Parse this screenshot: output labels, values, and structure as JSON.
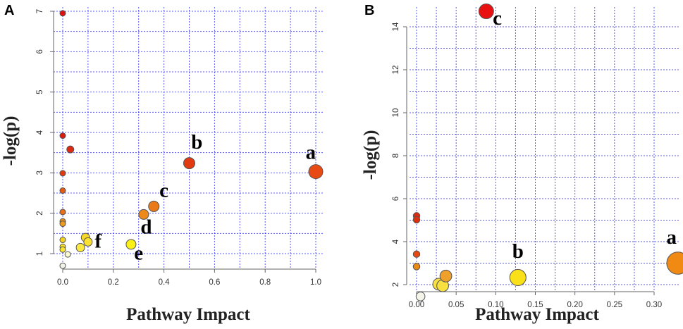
{
  "chart_data": [
    {
      "panel": "A",
      "type": "scatter",
      "xlabel": "Pathway Impact",
      "ylabel": "-log(p)",
      "xlim": [
        0,
        1.0
      ],
      "ylim": [
        0.6,
        7.0
      ],
      "xticks": [
        0.0,
        0.2,
        0.4,
        0.6,
        0.8,
        1.0
      ],
      "xtick_labels": [
        "0.0",
        "0.2",
        "0.4",
        "0.6",
        "0.8",
        "1.0"
      ],
      "yticks": [
        1,
        2,
        3,
        4,
        5,
        6,
        7
      ],
      "ytick_labels": [
        "1",
        "2",
        "3",
        "4",
        "5",
        "6",
        "7"
      ],
      "grid": true,
      "points": [
        {
          "x": 0.0,
          "y": 6.95,
          "size": 4,
          "color": "#dd1010"
        },
        {
          "x": 0.0,
          "y": 3.92,
          "size": 4,
          "color": "#dd1a10"
        },
        {
          "x": 0.03,
          "y": 3.58,
          "size": 5,
          "color": "#e02a10"
        },
        {
          "x": 0.0,
          "y": 2.99,
          "size": 4,
          "color": "#e23a10"
        },
        {
          "x": 0.0,
          "y": 2.56,
          "size": 4,
          "color": "#e55a14"
        },
        {
          "x": 0.0,
          "y": 2.03,
          "size": 4,
          "color": "#e87018"
        },
        {
          "x": 0.0,
          "y": 1.8,
          "size": 4,
          "color": "#ec8c1a"
        },
        {
          "x": 0.0,
          "y": 1.74,
          "size": 4,
          "color": "#ee9a1c"
        },
        {
          "x": 0.0,
          "y": 1.34,
          "size": 4,
          "color": "#f4d020"
        },
        {
          "x": 0.0,
          "y": 1.17,
          "size": 4,
          "color": "#f7df24"
        },
        {
          "x": 0.0,
          "y": 1.1,
          "size": 4,
          "color": "#f9e530"
        },
        {
          "x": 0.0,
          "y": 0.7,
          "size": 4,
          "color": "#f2f2e8"
        },
        {
          "x": 0.02,
          "y": 0.98,
          "size": 4,
          "color": "#fafad0"
        },
        {
          "x": 0.07,
          "y": 1.15,
          "size": 6,
          "color": "#fbe840"
        },
        {
          "x": 0.09,
          "y": 1.4,
          "size": 6,
          "color": "#f8d828"
        },
        {
          "x": 0.1,
          "y": 1.29,
          "size": 6,
          "color": "#fae030"
        },
        {
          "x": 0.27,
          "y": 1.23,
          "size": 7,
          "color": "#fbf018"
        },
        {
          "x": 0.32,
          "y": 1.97,
          "size": 7,
          "color": "#ee8a1a"
        },
        {
          "x": 0.36,
          "y": 2.17,
          "size": 7.5,
          "color": "#ea7a18"
        },
        {
          "x": 0.5,
          "y": 3.24,
          "size": 8,
          "color": "#e23a10"
        },
        {
          "x": 1.0,
          "y": 3.03,
          "size": 10,
          "color": "#e84a14"
        }
      ],
      "annotations": [
        {
          "text": "a",
          "x": 0.98,
          "y": 3.35
        },
        {
          "text": "b",
          "x": 0.53,
          "y": 3.6
        },
        {
          "text": "c",
          "x": 0.4,
          "y": 2.4
        },
        {
          "text": "d",
          "x": 0.33,
          "y": 1.5
        },
        {
          "text": "e",
          "x": 0.3,
          "y": 0.85
        },
        {
          "text": "f",
          "x": 0.14,
          "y": 1.15
        }
      ]
    },
    {
      "panel": "B",
      "type": "scatter",
      "xlabel": "Pathway Impact",
      "ylabel": "-log(p)",
      "xlim": [
        0,
        0.33
      ],
      "ylim": [
        1.2,
        15.0
      ],
      "xticks": [
        0.0,
        0.05,
        0.1,
        0.15,
        0.2,
        0.25,
        0.3
      ],
      "xtick_labels": [
        "0.00",
        "0.05",
        "0.10",
        "0.15",
        "0.20",
        "0.25",
        "0.30"
      ],
      "yticks": [
        2,
        4,
        6,
        8,
        10,
        12,
        14
      ],
      "ytick_labels": [
        "2",
        "4",
        "6",
        "8",
        "10",
        "12",
        "14"
      ],
      "grid": true,
      "points": [
        {
          "x": 0.088,
          "y": 14.72,
          "size": 10,
          "color": "#e81010"
        },
        {
          "x": 0.0,
          "y": 5.2,
          "size": 4.5,
          "color": "#dd2a10"
        },
        {
          "x": 0.0,
          "y": 5.02,
          "size": 4.5,
          "color": "#dd3010"
        },
        {
          "x": 0.0,
          "y": 3.42,
          "size": 4.5,
          "color": "#e44a12"
        },
        {
          "x": 0.0,
          "y": 2.84,
          "size": 4.5,
          "color": "#ec8a18"
        },
        {
          "x": 0.005,
          "y": 1.45,
          "size": 6,
          "color": "#f4f4e8"
        },
        {
          "x": 0.028,
          "y": 2.02,
          "size": 8,
          "color": "#f7e040"
        },
        {
          "x": 0.033,
          "y": 1.95,
          "size": 8,
          "color": "#f7e040"
        },
        {
          "x": 0.037,
          "y": 2.4,
          "size": 8,
          "color": "#eea02a"
        },
        {
          "x": 0.128,
          "y": 2.33,
          "size": 11,
          "color": "#f9e018"
        },
        {
          "x": 0.33,
          "y": 3.0,
          "size": 15,
          "color": "#f08a12"
        }
      ],
      "annotations": [
        {
          "text": "a",
          "x": 0.322,
          "y": 3.9
        },
        {
          "text": "b",
          "x": 0.128,
          "y": 3.25
        },
        {
          "text": "c",
          "x": 0.102,
          "y": 14.1
        }
      ]
    }
  ],
  "panels": {
    "A": {
      "letter": "A"
    },
    "B": {
      "letter": "B"
    }
  }
}
